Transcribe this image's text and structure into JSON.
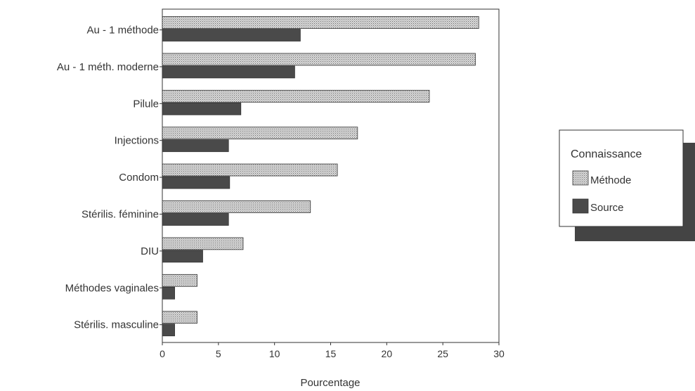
{
  "chart_data": {
    "type": "bar",
    "orientation": "horizontal",
    "categories": [
      "Au - 1 méthode",
      "Au - 1 méth. moderne",
      "Pilule",
      "Injections",
      "Condom",
      "Stérilis. féminine",
      "DIU",
      "Méthodes vaginales",
      "Stérilis. masculine"
    ],
    "series": [
      {
        "name": "Méthode",
        "values": [
          28.2,
          27.9,
          23.8,
          17.4,
          15.6,
          13.2,
          7.2,
          3.1,
          3.1
        ],
        "color": "#bdbdbd",
        "pattern": "stipple"
      },
      {
        "name": "Source",
        "values": [
          12.3,
          11.8,
          7.0,
          5.9,
          6.0,
          5.9,
          3.6,
          1.1,
          1.1
        ],
        "color": "#4a4a4a",
        "pattern": "solid"
      }
    ],
    "xlabel": "Pourcentage",
    "ylabel": "",
    "xlim": [
      0,
      30
    ],
    "xticks": [
      "0",
      "5",
      "10",
      "15",
      "20",
      "25",
      "30"
    ],
    "grid": false,
    "legend": {
      "title": "Connaissance",
      "placement": "right",
      "items": [
        "Méthode",
        "Source"
      ]
    }
  }
}
